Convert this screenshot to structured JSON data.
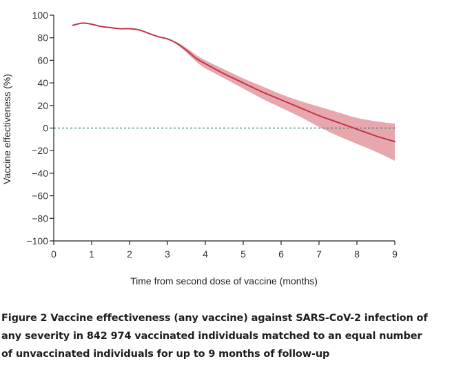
{
  "chart_data": {
    "type": "line",
    "xlabel": "Time from second dose of vaccine (months)",
    "ylabel": "Vaccine effectiveness (%)",
    "xlim": [
      0,
      9
    ],
    "ylim": [
      -100,
      100
    ],
    "x_ticks": [
      "0",
      "1",
      "2",
      "3",
      "4",
      "5",
      "6",
      "7",
      "8",
      "9"
    ],
    "y_ticks": [
      "100",
      "80",
      "60",
      "40",
      "20",
      "0",
      "−20",
      "−40",
      "−60",
      "−80",
      "−100"
    ],
    "reference_line": {
      "y": 0,
      "style": "dashed",
      "color": "#2e7d6b"
    },
    "series": [
      {
        "color": "#c0354a",
        "band_color": "#e3999f",
        "x": [
          0.5,
          0.75,
          1.0,
          1.25,
          1.5,
          1.75,
          2.0,
          2.25,
          2.5,
          2.75,
          3.0,
          3.25,
          3.5,
          3.75,
          4.0,
          4.5,
          5.0,
          5.5,
          6.0,
          6.5,
          7.0,
          7.5,
          8.0,
          8.5,
          9.0
        ],
        "y": [
          91,
          93,
          92,
          90,
          89,
          88,
          88,
          87,
          84,
          81,
          79,
          75,
          69,
          62,
          57,
          48,
          40,
          32,
          25,
          18,
          11,
          5,
          -1,
          -7,
          -12
        ],
        "lower": [
          91,
          93,
          92,
          90,
          89,
          88,
          88,
          87,
          84,
          81,
          79,
          74,
          67,
          59,
          53,
          44,
          35,
          26,
          18,
          10,
          1,
          -7,
          -14,
          -21,
          -29
        ],
        "upper": [
          91,
          93,
          92,
          90,
          89,
          88,
          88,
          87,
          84,
          81,
          79,
          76,
          71,
          65,
          60,
          52,
          44,
          37,
          30,
          24,
          19,
          14,
          9,
          6,
          4
        ]
      }
    ]
  },
  "caption": {
    "line1": "Figure 2 Vaccine effectiveness (any vaccine) against SARS-CoV-2 infection of",
    "line2": "any severity in 842 974 vaccinated individuals matched to an equal number",
    "line3": "of unvaccinated individuals for up to 9 months of follow-up"
  }
}
